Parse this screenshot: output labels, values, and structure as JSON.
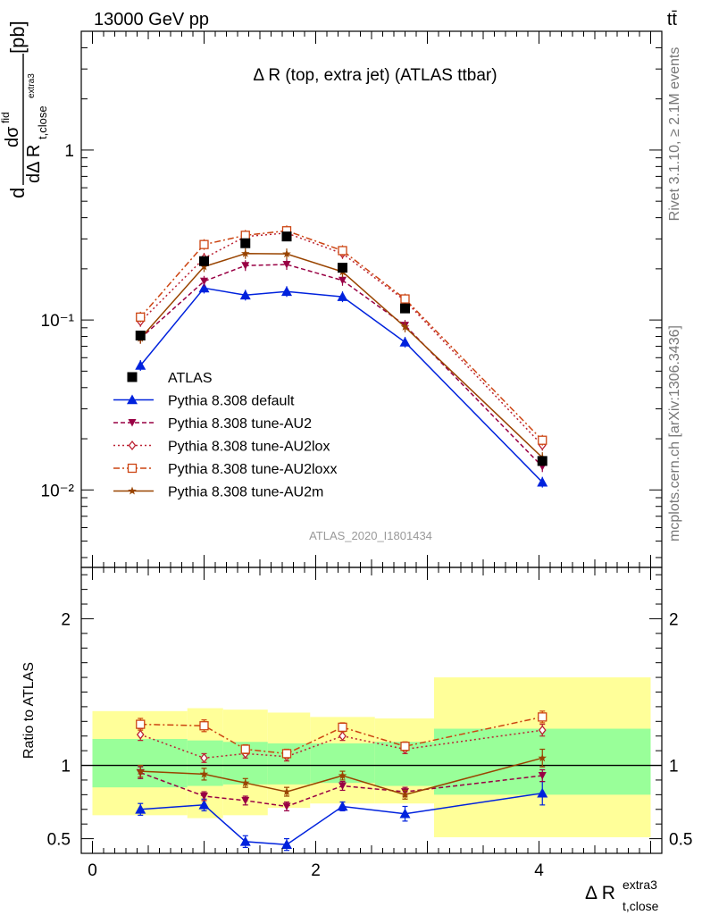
{
  "header": {
    "left": "13000 GeV pp",
    "right": "tt̄"
  },
  "side_labels": {
    "rivet": "Rivet 3.1.10, ≥ 2.1M events",
    "mcplots": "mcplots.cern.ch [arXiv:1306.3436]"
  },
  "colors": {
    "data": "#000000",
    "default": "#0022dd",
    "au2": "#990044",
    "au2lox": "#bb2233",
    "au2loxx": "#cc4411",
    "au2m": "#994400",
    "band_inner": "#99ff99",
    "band_outer": "#ffff99"
  },
  "chart_data": [
    {
      "type": "scatter",
      "title": "Δ R (top, extra jet) (ATLAS ttbar)",
      "watermark": "ATLAS_2020_I1801434",
      "ylabel": "dσ/dΔ R_t,close^extra3 [pb]",
      "ylabel_parts": {
        "d": "d",
        "sigma": "dσ",
        "sigma_sup": "fid",
        "dr": "dΔ R",
        "sub": "t,close",
        "sup": "extra3",
        "unit": "[pb]"
      },
      "yscale": "log",
      "ylim": [
        0.0035,
        5.0
      ],
      "xlim": [
        -0.1,
        5.1
      ],
      "ytick_labels": [
        "10⁻²",
        "10⁻¹",
        "1"
      ],
      "legend_position": "center-left",
      "x": [
        0.43,
        1.0,
        1.37,
        1.74,
        2.24,
        2.8,
        4.03
      ],
      "data": {
        "name": "ATLAS",
        "values": [
          0.081,
          0.222,
          0.283,
          0.31,
          0.203,
          0.117,
          0.0148
        ]
      },
      "series": [
        {
          "name": "Pythia 8.308 default",
          "key": "default",
          "marker": "tri-up",
          "dash": "",
          "values": [
            0.054,
            0.154,
            0.14,
            0.147,
            0.137,
            0.074,
            0.0111
          ]
        },
        {
          "name": "Pythia 8.308 tune-AU2",
          "key": "au2",
          "marker": "tri-down",
          "dash": "5,3",
          "values": [
            0.078,
            0.169,
            0.209,
            0.212,
            0.171,
            0.093,
            0.0137
          ]
        },
        {
          "name": "Pythia 8.308 tune-AU2lox",
          "key": "au2lox",
          "marker": "diamond",
          "dash": "2,3",
          "values": [
            0.098,
            0.231,
            0.31,
            0.325,
            0.246,
            0.13,
            0.0183
          ]
        },
        {
          "name": "Pythia 8.308 tune-AU2loxx",
          "key": "au2loxx",
          "marker": "square",
          "dash": "7,3,2,3",
          "values": [
            0.104,
            0.278,
            0.315,
            0.335,
            0.256,
            0.133,
            0.0196
          ]
        },
        {
          "name": "Pythia 8.308 tune-AU2m",
          "key": "au2m",
          "marker": "star",
          "dash": "",
          "values": [
            0.078,
            0.206,
            0.246,
            0.245,
            0.192,
            0.091,
            0.0155
          ]
        }
      ]
    },
    {
      "type": "line",
      "ylabel": "Ratio to ATLAS",
      "xlabel": "Δ R_t,close^extra3",
      "xlabel_parts": {
        "main": "Δ R",
        "sub": "t,close",
        "sup": "extra3"
      },
      "ylim": [
        0.4,
        2.35
      ],
      "xlim": [
        -0.1,
        5.1
      ],
      "ytick_labels": [
        "0.5",
        "1",
        "2"
      ],
      "xtick_labels": [
        "0",
        "2",
        "4"
      ],
      "reference_line": 1,
      "bins": [
        {
          "x0": 0.0,
          "x1": 0.85,
          "inner": [
            0.85,
            1.18
          ],
          "outer": [
            0.66,
            1.37
          ]
        },
        {
          "x0": 0.85,
          "x1": 1.17,
          "inner": [
            0.86,
            1.17
          ],
          "outer": [
            0.64,
            1.39
          ]
        },
        {
          "x0": 1.17,
          "x1": 1.57,
          "inner": [
            0.87,
            1.16
          ],
          "outer": [
            0.66,
            1.38
          ]
        },
        {
          "x0": 1.57,
          "x1": 1.95,
          "inner": [
            0.87,
            1.15
          ],
          "outer": [
            0.71,
            1.36
          ]
        },
        {
          "x0": 1.95,
          "x1": 2.53,
          "inner": [
            0.88,
            1.15
          ],
          "outer": [
            0.74,
            1.33
          ]
        },
        {
          "x0": 2.53,
          "x1": 3.06,
          "inner": [
            0.86,
            1.16
          ],
          "outer": [
            0.74,
            1.32
          ]
        },
        {
          "x0": 3.06,
          "x1": 5.0,
          "inner": [
            0.8,
            1.25
          ],
          "outer": [
            0.51,
            1.6
          ]
        }
      ],
      "x": [
        0.43,
        1.0,
        1.37,
        1.74,
        2.24,
        2.8,
        4.03
      ],
      "series": [
        {
          "name": "Pythia 8.308 default",
          "key": "default",
          "marker": "tri-up",
          "dash": "",
          "values": [
            0.7,
            0.73,
            0.48,
            0.46,
            0.72,
            0.67,
            0.81
          ],
          "err": [
            0.04,
            0.04,
            0.04,
            0.04,
            0.03,
            0.05,
            0.08
          ]
        },
        {
          "name": "Pythia 8.308 tune-AU2",
          "key": "au2",
          "marker": "tri-down",
          "dash": "5,3",
          "values": [
            0.95,
            0.79,
            0.76,
            0.72,
            0.86,
            0.82,
            0.93
          ],
          "err": [
            0.04,
            0.03,
            0.03,
            0.03,
            0.03,
            0.03,
            0.04
          ]
        },
        {
          "name": "Pythia 8.308 tune-AU2lox",
          "key": "au2lox",
          "marker": "diamond",
          "dash": "2,3",
          "values": [
            1.21,
            1.05,
            1.08,
            1.06,
            1.2,
            1.11,
            1.24
          ],
          "err": [
            0.04,
            0.03,
            0.03,
            0.03,
            0.03,
            0.03,
            0.04
          ]
        },
        {
          "name": "Pythia 8.308 tune-AU2loxx",
          "key": "au2loxx",
          "marker": "square",
          "dash": "7,3,2,3",
          "values": [
            1.28,
            1.27,
            1.11,
            1.08,
            1.26,
            1.13,
            1.33
          ],
          "err": [
            0.04,
            0.04,
            0.03,
            0.03,
            0.03,
            0.03,
            0.04
          ]
        },
        {
          "name": "Pythia 8.308 tune-AU2m",
          "key": "au2m",
          "marker": "star",
          "dash": "",
          "values": [
            0.96,
            0.94,
            0.88,
            0.82,
            0.93,
            0.8,
            1.05
          ],
          "err": [
            0.04,
            0.04,
            0.03,
            0.03,
            0.03,
            0.03,
            0.06
          ]
        }
      ]
    }
  ]
}
